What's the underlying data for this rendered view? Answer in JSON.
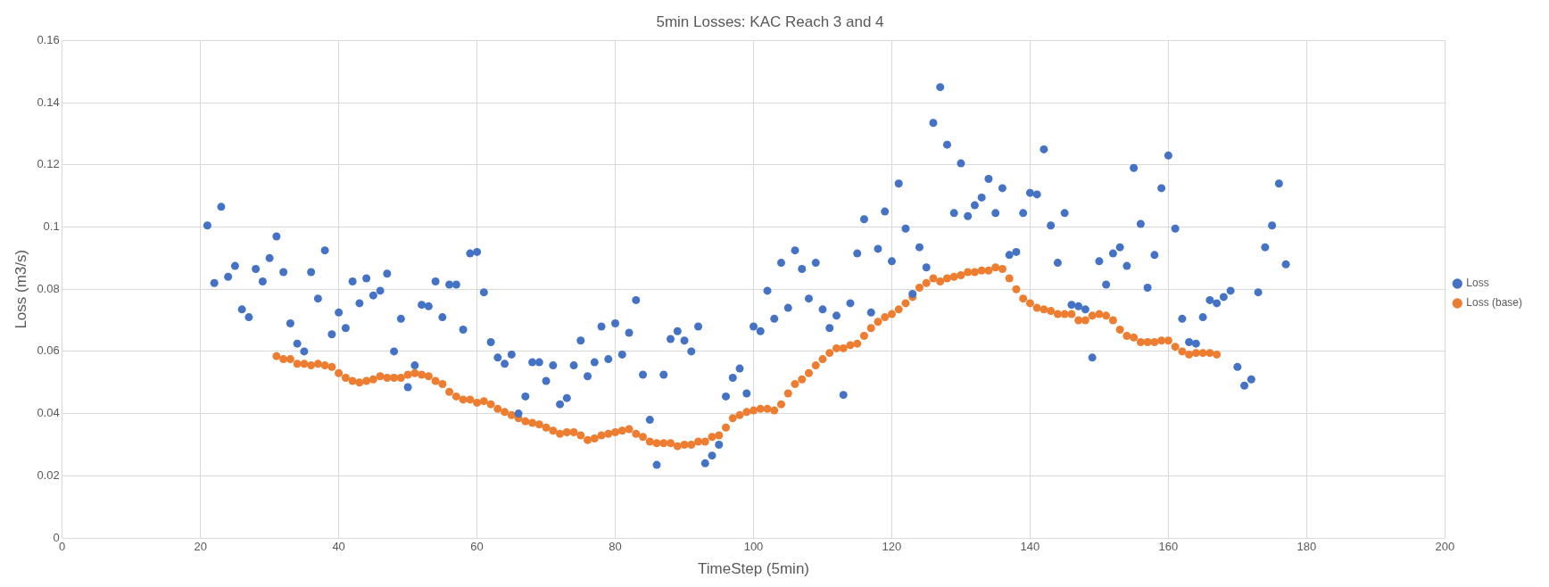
{
  "chart_data": {
    "type": "scatter",
    "title": "5min Losses: KAC Reach 3 and 4",
    "xlabel": "TimeStep (5min)",
    "ylabel": "Loss (m3/s)",
    "xlim": [
      0,
      200
    ],
    "xticks": [
      0,
      20,
      40,
      60,
      80,
      100,
      120,
      140,
      160,
      180,
      200
    ],
    "ylim": [
      0,
      0.16
    ],
    "yticks": [
      0,
      0.02,
      0.04,
      0.06,
      0.08,
      0.1,
      0.12,
      0.14,
      0.16
    ],
    "grid": true,
    "legend": "right",
    "marker": "circle",
    "series": [
      {
        "name": "Loss",
        "color": "#4472c4",
        "x": [
          21,
          22,
          23,
          24,
          25,
          26,
          27,
          28,
          29,
          30,
          31,
          32,
          33,
          34,
          35,
          36,
          37,
          38,
          39,
          40,
          41,
          42,
          43,
          44,
          45,
          46,
          47,
          48,
          49,
          50,
          51,
          52,
          53,
          54,
          55,
          56,
          57,
          58,
          59,
          60,
          61,
          62,
          63,
          64,
          65,
          66,
          67,
          68,
          69,
          70,
          71,
          72,
          73,
          74,
          75,
          76,
          77,
          78,
          79,
          80,
          81,
          82,
          83,
          84,
          85,
          86,
          87,
          88,
          89,
          90,
          91,
          92,
          93,
          94,
          95,
          96,
          97,
          98,
          99,
          100,
          101,
          102,
          103,
          104,
          105,
          106,
          107,
          108,
          109,
          110,
          111,
          112,
          113,
          114,
          115,
          116,
          117,
          118,
          119,
          120,
          121,
          122,
          123,
          124,
          125,
          126,
          127,
          128,
          129,
          130,
          131,
          132,
          133,
          134,
          135,
          136,
          137,
          138,
          139,
          140,
          141,
          142,
          143,
          144,
          145,
          146,
          147,
          148,
          149,
          150,
          151,
          152,
          153,
          154,
          155,
          156,
          157,
          158,
          159,
          160,
          161,
          162,
          163,
          164,
          165,
          166,
          167,
          168,
          169,
          170,
          171,
          172,
          173,
          174,
          175,
          176,
          177
        ],
        "values": [
          0.1005,
          0.082,
          0.1065,
          0.084,
          0.0875,
          0.0735,
          0.071,
          0.0865,
          0.0825,
          0.09,
          0.097,
          0.0855,
          0.069,
          0.0625,
          0.06,
          0.0855,
          0.077,
          0.0925,
          0.0655,
          0.0725,
          0.0675,
          0.0825,
          0.0755,
          0.0835,
          0.078,
          0.0795,
          0.085,
          0.06,
          0.0705,
          0.0485,
          0.0555,
          0.075,
          0.0745,
          0.0825,
          0.071,
          0.0815,
          0.0815,
          0.067,
          0.0915,
          0.092,
          0.079,
          0.063,
          0.058,
          0.056,
          0.059,
          0.04,
          0.0455,
          0.0565,
          0.0565,
          0.0505,
          0.0555,
          0.043,
          0.045,
          0.0555,
          0.0635,
          0.052,
          0.0565,
          0.068,
          0.0575,
          0.069,
          0.059,
          0.066,
          0.0765,
          0.0525,
          0.038,
          0.0235,
          0.0525,
          0.064,
          0.0665,
          0.0635,
          0.06,
          0.068,
          0.024,
          0.0265,
          0.03,
          0.0455,
          0.0515,
          0.0545,
          0.0465,
          0.068,
          0.0665,
          0.0795,
          0.0705,
          0.0885,
          0.074,
          0.0925,
          0.0865,
          0.077,
          0.0885,
          0.0735,
          0.0675,
          0.0715,
          0.046,
          0.0755,
          0.0915,
          0.1025,
          0.0725,
          0.093,
          0.105,
          0.089,
          0.114,
          0.0995,
          0.0785,
          0.0935,
          0.087,
          0.1335,
          0.145,
          0.1265,
          0.1045,
          0.1205,
          0.1035,
          0.107,
          0.1095,
          0.1155,
          0.1045,
          0.1125,
          0.091,
          0.092,
          0.1045,
          0.111,
          0.1105,
          0.125,
          0.1005,
          0.0885,
          0.1045,
          0.075,
          0.0745,
          0.0735,
          0.058,
          0.089,
          0.0815,
          0.0915,
          0.0935,
          0.0875,
          0.119,
          0.101,
          0.0805,
          0.091,
          0.1125,
          0.123,
          0.0995,
          0.0705,
          0.063,
          0.0625,
          0.071,
          0.0765,
          0.0755,
          0.0775,
          0.0795,
          0.055,
          0.049,
          0.051,
          0.079,
          0.0935,
          0.1005,
          0.114,
          0.088
        ]
      },
      {
        "name": "Loss (base)",
        "color": "#ed7d31",
        "x": [
          31,
          32,
          33,
          34,
          35,
          36,
          37,
          38,
          39,
          40,
          41,
          42,
          43,
          44,
          45,
          46,
          47,
          48,
          49,
          50,
          51,
          52,
          53,
          54,
          55,
          56,
          57,
          58,
          59,
          60,
          61,
          62,
          63,
          64,
          65,
          66,
          67,
          68,
          69,
          70,
          71,
          72,
          73,
          74,
          75,
          76,
          77,
          78,
          79,
          80,
          81,
          82,
          83,
          84,
          85,
          86,
          87,
          88,
          89,
          90,
          91,
          92,
          93,
          94,
          95,
          96,
          97,
          98,
          99,
          100,
          101,
          102,
          103,
          104,
          105,
          106,
          107,
          108,
          109,
          110,
          111,
          112,
          113,
          114,
          115,
          116,
          117,
          118,
          119,
          120,
          121,
          122,
          123,
          124,
          125,
          126,
          127,
          128,
          129,
          130,
          131,
          132,
          133,
          134,
          135,
          136,
          137,
          138,
          139,
          140,
          141,
          142,
          143,
          144,
          145,
          146,
          147,
          148,
          149,
          150,
          151,
          152,
          153,
          154,
          155,
          156,
          157,
          158,
          159,
          160,
          161,
          162,
          163,
          164,
          165,
          166,
          167
        ],
        "values": [
          0.0585,
          0.0575,
          0.0575,
          0.056,
          0.056,
          0.0555,
          0.056,
          0.0555,
          0.055,
          0.053,
          0.0515,
          0.0505,
          0.05,
          0.0505,
          0.051,
          0.052,
          0.0515,
          0.0515,
          0.0515,
          0.0525,
          0.053,
          0.0525,
          0.052,
          0.0505,
          0.0495,
          0.047,
          0.0455,
          0.0445,
          0.0445,
          0.0435,
          0.044,
          0.043,
          0.0415,
          0.0405,
          0.0395,
          0.0385,
          0.0375,
          0.037,
          0.0365,
          0.0355,
          0.0345,
          0.0335,
          0.034,
          0.034,
          0.033,
          0.0315,
          0.032,
          0.033,
          0.0335,
          0.034,
          0.0345,
          0.035,
          0.0335,
          0.0325,
          0.031,
          0.0305,
          0.0305,
          0.0305,
          0.0295,
          0.03,
          0.03,
          0.031,
          0.031,
          0.0325,
          0.033,
          0.0355,
          0.0385,
          0.0395,
          0.0405,
          0.041,
          0.0415,
          0.0415,
          0.041,
          0.043,
          0.0465,
          0.0495,
          0.051,
          0.053,
          0.0555,
          0.0575,
          0.0595,
          0.061,
          0.061,
          0.062,
          0.0625,
          0.065,
          0.0675,
          0.0695,
          0.071,
          0.072,
          0.0735,
          0.0755,
          0.0775,
          0.0805,
          0.082,
          0.0835,
          0.0825,
          0.0835,
          0.084,
          0.0845,
          0.0855,
          0.0855,
          0.086,
          0.086,
          0.087,
          0.0865,
          0.0835,
          0.08,
          0.077,
          0.0755,
          0.074,
          0.0735,
          0.073,
          0.072,
          0.072,
          0.072,
          0.07,
          0.07,
          0.0715,
          0.072,
          0.0715,
          0.07,
          0.067,
          0.065,
          0.0645,
          0.063,
          0.063,
          0.063,
          0.0635,
          0.0635,
          0.0615,
          0.06,
          0.059,
          0.0595,
          0.0595,
          0.0595,
          0.059
        ]
      }
    ]
  }
}
